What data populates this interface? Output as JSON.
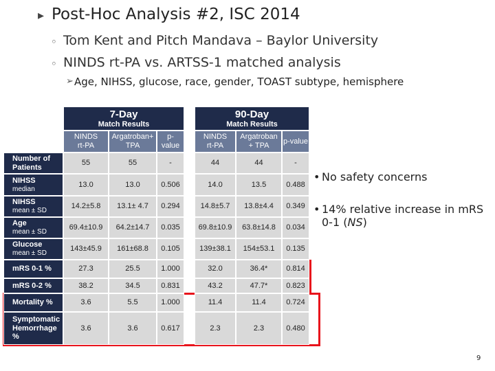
{
  "header": {
    "title": "Post-Hoc Analysis #2,  ISC 2014"
  },
  "bullets": [
    "Tom Kent and Pitch Mandava – Baylor University",
    "NINDS rt-PA vs. ARTSS-1 matched analysis"
  ],
  "sub_bullet": "Age, NIHSS, glucose, race, gender, TOAST subtype, hemisphere",
  "table": {
    "groups": [
      {
        "title": "7-Day",
        "subtitle": "Match Results"
      },
      {
        "title": "90-Day",
        "subtitle": "Match Results"
      }
    ],
    "columns": [
      [
        "NINDS",
        "rt-PA"
      ],
      [
        "Argatroban+",
        "TPA"
      ],
      [
        "p-",
        "value"
      ],
      [
        "NINDS",
        "rt-PA"
      ],
      [
        "Argatroban",
        "+ TPA"
      ],
      [
        "p-value"
      ]
    ],
    "rows": [
      {
        "label": "Number of Patients",
        "cells": [
          "55",
          "55",
          "-",
          "44",
          "44",
          "-"
        ]
      },
      {
        "label": "NIHSS",
        "sublabel": "median",
        "cells": [
          "13.0",
          "13.0",
          "0.506",
          "14.0",
          "13.5",
          "0.488"
        ]
      },
      {
        "label": "NIHSS",
        "sublabel": "mean ± SD",
        "cells": [
          "14.2±5.8",
          "13.1± 4.7",
          "0.294",
          "14.8±5.7",
          "13.8±4.4",
          "0.349"
        ]
      },
      {
        "label": "Age",
        "sublabel": "mean ± SD",
        "cells": [
          "69.4±10.9",
          "64.2±14.7",
          "0.035",
          "69.8±10.9",
          "63.8±14.8",
          "0.034"
        ]
      },
      {
        "label": "Glucose",
        "sublabel": "mean ± SD",
        "cells": [
          "143±45.9",
          "161±68.8",
          "0.105",
          "139±38.1",
          "154±53.1",
          "0.135"
        ]
      },
      {
        "label": "mRS 0-1 %",
        "cells": [
          "27.3",
          "25.5",
          "1.000",
          "32.0",
          "36.4*",
          "0.814"
        ]
      },
      {
        "label": "mRS 0-2 %",
        "cells": [
          "38.2",
          "34.5",
          "0.831",
          "43.2",
          "47.7*",
          "0.823"
        ]
      },
      {
        "label": "Mortality %",
        "cells": [
          "3.6",
          "5.5",
          "1.000",
          "11.4",
          "11.4",
          "0.724"
        ]
      },
      {
        "label": "Symptomatic Hemorrhage %",
        "cells": [
          "3.6",
          "3.6",
          "0.617",
          "2.3",
          "2.3",
          "0.480"
        ]
      }
    ]
  },
  "notes": [
    [
      "No safety concerns"
    ],
    [
      "14% relative increase in mRS 0-1 (",
      "NS",
      ")"
    ]
  ],
  "page_number": "9"
}
